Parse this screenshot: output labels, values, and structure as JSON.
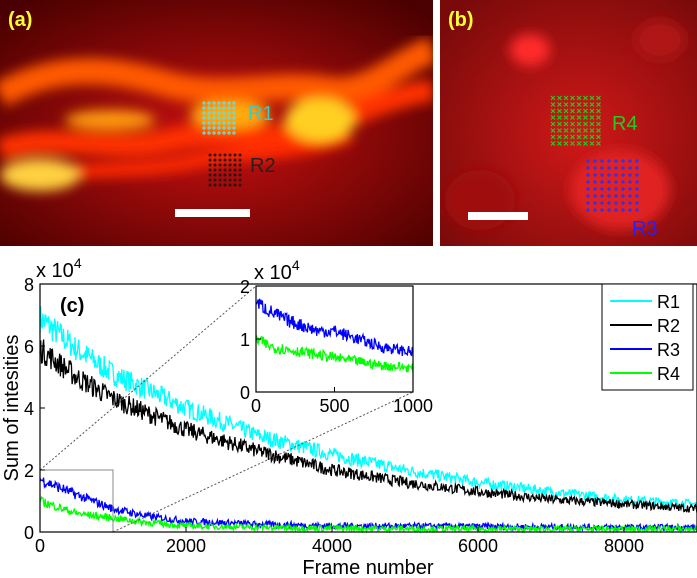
{
  "panels": {
    "a": {
      "label": "(a)",
      "roi_labels": [
        {
          "name": "R1",
          "color": "#33cccc"
        },
        {
          "name": "R2",
          "color": "#222222"
        }
      ]
    },
    "b": {
      "label": "(b)",
      "roi_labels": [
        {
          "name": "R4",
          "color": "#22cc22"
        },
        {
          "name": "R3",
          "color": "#2222ff"
        }
      ]
    },
    "c": {
      "label": "(c)"
    }
  },
  "colors": {
    "R1": "#00ffff",
    "R2": "#000000",
    "R3": "#0000ff",
    "R4": "#00ff00",
    "label_yellow": "#ffff33"
  },
  "chart_data": [
    {
      "id": "main",
      "type": "line",
      "title": "",
      "xlabel": "Frame number",
      "ylabel": "Sum of intesities",
      "y_multiplier": "x 10^4",
      "y_multiplier_base": "x 10",
      "y_multiplier_exp": "4",
      "xlim": [
        0,
        9000
      ],
      "ylim": [
        0,
        8
      ],
      "xticks": [
        0,
        2000,
        4000,
        6000,
        8000
      ],
      "yticks": [
        0,
        2,
        4,
        6,
        8
      ],
      "legend_position": "top-right",
      "series": [
        {
          "name": "R1",
          "color": "#00ffff",
          "x": [
            0,
            500,
            1000,
            2000,
            3000,
            4000,
            5000,
            6000,
            7000,
            8000,
            9000
          ],
          "values": [
            6.9,
            5.9,
            5.1,
            4.0,
            3.1,
            2.5,
            2.0,
            1.6,
            1.3,
            1.05,
            0.9
          ]
        },
        {
          "name": "R2",
          "color": "#000000",
          "x": [
            0,
            500,
            1000,
            2000,
            3000,
            4000,
            5000,
            6000,
            7000,
            8000,
            9000
          ],
          "values": [
            5.9,
            5.0,
            4.3,
            3.3,
            2.6,
            2.0,
            1.6,
            1.3,
            1.05,
            0.9,
            0.75
          ]
        },
        {
          "name": "R3",
          "color": "#0000ff",
          "x": [
            0,
            500,
            1000,
            1500,
            2000,
            3000,
            4000,
            6000,
            8000,
            9000
          ],
          "values": [
            1.7,
            1.2,
            0.75,
            0.5,
            0.35,
            0.25,
            0.2,
            0.18,
            0.15,
            0.15
          ]
        },
        {
          "name": "R4",
          "color": "#00ff00",
          "x": [
            0,
            500,
            1000,
            1500,
            2000,
            3000,
            4000,
            6000,
            8000,
            9000
          ],
          "values": [
            1.0,
            0.6,
            0.45,
            0.3,
            0.2,
            0.15,
            0.12,
            0.1,
            0.1,
            0.1
          ]
        }
      ],
      "zoom_box": {
        "x": [
          0,
          1000
        ],
        "y": [
          0,
          2
        ]
      }
    },
    {
      "id": "inset",
      "type": "line",
      "y_multiplier": "x 10^4",
      "y_multiplier_base": "x 10",
      "y_multiplier_exp": "4",
      "xlim": [
        0,
        1000
      ],
      "ylim": [
        0,
        2
      ],
      "xticks": [
        0,
        500,
        1000
      ],
      "yticks": [
        0,
        1,
        2
      ],
      "series": [
        {
          "name": "R3",
          "color": "#0000ff",
          "x": [
            0,
            100,
            200,
            300,
            400,
            500,
            600,
            700,
            800,
            900,
            1000
          ],
          "values": [
            1.7,
            1.5,
            1.35,
            1.25,
            1.15,
            1.15,
            1.05,
            0.95,
            0.85,
            0.8,
            0.75
          ]
        },
        {
          "name": "R4",
          "color": "#00ff00",
          "x": [
            0,
            100,
            200,
            300,
            400,
            500,
            600,
            700,
            800,
            900,
            1000
          ],
          "values": [
            1.0,
            0.85,
            0.8,
            0.75,
            0.7,
            0.65,
            0.6,
            0.55,
            0.5,
            0.48,
            0.45
          ]
        }
      ]
    }
  ]
}
